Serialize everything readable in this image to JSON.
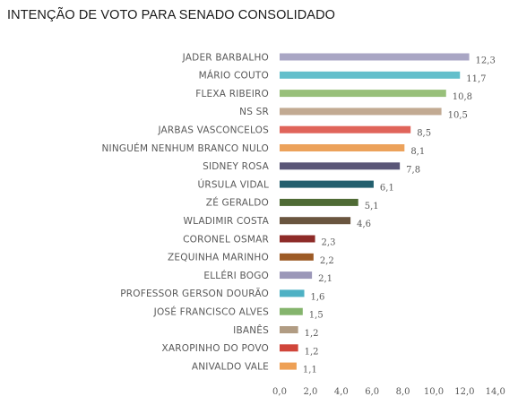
{
  "chart_data": {
    "type": "bar",
    "orientation": "horizontal",
    "title": "INTENÇÃO DE VOTO PARA SENADO CONSOLIDADO",
    "categories": [
      "JADER BARBALHO",
      "MÁRIO COUTO",
      "FLEXA RIBEIRO",
      "NS SR",
      "JARBAS VASCONCELOS",
      "NINGUÉM NENHUM BRANCO NULO",
      "SIDNEY ROSA",
      "ÚRSULA VIDAL",
      "ZÉ GERALDO",
      "WLADIMIR COSTA",
      "CORONEL OSMAR",
      "ZEQUINHA MARINHO",
      "ELLÉRI BOGO",
      "PROFESSOR GERSON DOURÃO",
      "JOSÉ FRANCISCO ALVES",
      "IBANÊS",
      "XAROPINHO DO POVO",
      "ANIVALDO VALE"
    ],
    "values": [
      12.3,
      11.7,
      10.8,
      10.5,
      8.5,
      8.1,
      7.8,
      6.1,
      5.1,
      4.6,
      2.3,
      2.2,
      2.1,
      1.6,
      1.5,
      1.2,
      1.2,
      1.1
    ],
    "value_labels": [
      "12,3",
      "11,7",
      "10,8",
      "10,5",
      "8,5",
      "8,1",
      "7,8",
      "6,1",
      "5,1",
      "4,6",
      "2,3",
      "2,2",
      "2,1",
      "1,6",
      "1,5",
      "1,2",
      "1,2",
      "1,1"
    ],
    "colors": [
      "#a9a6c4",
      "#63bfcb",
      "#98c07a",
      "#c2aa92",
      "#e0645a",
      "#eca25b",
      "#5a5677",
      "#235f6e",
      "#4f6b35",
      "#6a553f",
      "#8e2b28",
      "#9c5a25",
      "#9b97b8",
      "#4eb1c4",
      "#84b46c",
      "#b19c83",
      "#d0453a",
      "#eea055"
    ],
    "x_ticks": [
      0,
      2,
      4,
      6,
      8,
      10,
      12,
      14
    ],
    "x_tick_labels": [
      "0,0",
      "2,0",
      "4,0",
      "6,0",
      "8,0",
      "10,0",
      "12,0",
      "14,0"
    ],
    "xlim": [
      0,
      14
    ],
    "grid": false,
    "legend": "none"
  }
}
